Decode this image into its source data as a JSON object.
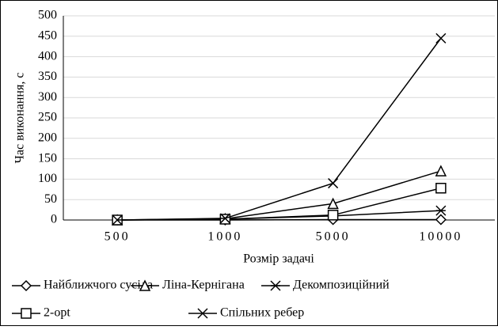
{
  "chart_data": {
    "type": "line",
    "y_label": "Час виконання, с",
    "x_label": "Розмір задачі",
    "categories": [
      "500",
      "1000",
      "5000",
      "10000"
    ],
    "series": [
      {
        "name": "Найближчого сусіда",
        "color": "#000000",
        "marker": "diamond",
        "values": [
          0,
          0,
          1,
          1
        ]
      },
      {
        "name": "Ліна-Кернігана",
        "color": "#000000",
        "marker": "triangle",
        "values": [
          0,
          3,
          40,
          120
        ]
      },
      {
        "name": "Декомпозиційний",
        "color": "#000000",
        "marker": "star",
        "values": [
          0,
          2,
          10,
          23
        ]
      },
      {
        "name": "2-opt",
        "color": "#000000",
        "marker": "square",
        "values": [
          0,
          2,
          12,
          78
        ]
      },
      {
        "name": "Спільних ребер",
        "color": "#000000",
        "marker": "x",
        "values": [
          0,
          4,
          90,
          445
        ]
      }
    ],
    "ylim": [
      0,
      500
    ],
    "yticks": [
      0,
      50,
      100,
      150,
      200,
      250,
      300,
      350,
      400,
      450,
      500
    ],
    "grid": true,
    "legend": "bottom"
  }
}
